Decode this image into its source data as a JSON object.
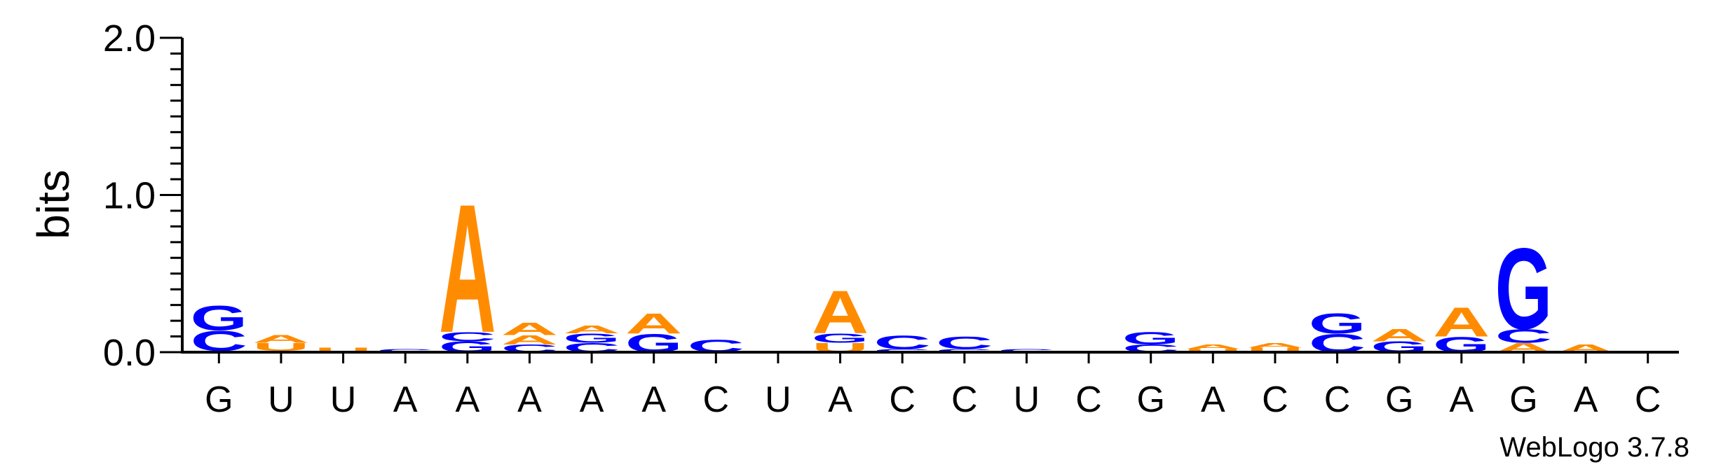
{
  "colors": {
    "A": "#ff8c00",
    "C": "#0000ff",
    "G": "#0000ff",
    "U": "#ff8c00",
    "axis": "#000000"
  },
  "credit": "WebLogo 3.7.8",
  "chart_data": {
    "type": "sequence-logo",
    "ylabel": "bits",
    "ylim": [
      0,
      2.0
    ],
    "yticks": [
      "0.0",
      "1.0",
      "2.0"
    ],
    "consensus": [
      "G",
      "U",
      "U",
      "A",
      "A",
      "A",
      "A",
      "A",
      "C",
      "U",
      "A",
      "C",
      "C",
      "U",
      "C",
      "G",
      "A",
      "C",
      "C",
      "G",
      "A",
      "G",
      "A",
      "C"
    ],
    "stacks": [
      [
        {
          "b": "U",
          "h": 0.01
        },
        {
          "b": "C",
          "h": 0.13
        },
        {
          "b": "G",
          "h": 0.16
        }
      ],
      [
        {
          "b": "G",
          "h": 0.01
        },
        {
          "b": "U",
          "h": 0.05
        },
        {
          "b": "A",
          "h": 0.05
        }
      ],
      [
        {
          "b": "U",
          "h": 0.03
        }
      ],
      [
        {
          "b": "C",
          "h": 0.02
        }
      ],
      [
        {
          "b": "G",
          "h": 0.07
        },
        {
          "b": "C",
          "h": 0.06
        },
        {
          "b": "A",
          "h": 0.84
        }
      ],
      [
        {
          "b": "C",
          "h": 0.05
        },
        {
          "b": "A",
          "h": 0.06
        },
        {
          "b": "A",
          "h": 0.08
        }
      ],
      [
        {
          "b": "C",
          "h": 0.06
        },
        {
          "b": "G",
          "h": 0.06
        },
        {
          "b": "A",
          "h": 0.05
        }
      ],
      [
        {
          "b": "G",
          "h": 0.12
        },
        {
          "b": "A",
          "h": 0.13
        }
      ],
      [
        {
          "b": "C",
          "h": 0.08
        }
      ],
      [],
      [
        {
          "b": "U",
          "h": 0.06
        },
        {
          "b": "G",
          "h": 0.06
        },
        {
          "b": "A",
          "h": 0.28
        }
      ],
      [
        {
          "b": "C",
          "h": 0.02
        },
        {
          "b": "C",
          "h": 0.09
        }
      ],
      [
        {
          "b": "C",
          "h": 0.02
        },
        {
          "b": "C",
          "h": 0.08
        }
      ],
      [
        {
          "b": "C",
          "h": 0.02
        }
      ],
      [],
      [
        {
          "b": "C",
          "h": 0.05
        },
        {
          "b": "G",
          "h": 0.08
        }
      ],
      [
        {
          "b": "U",
          "h": 0.02
        },
        {
          "b": "A",
          "h": 0.03
        }
      ],
      [
        {
          "b": "U",
          "h": 0.03
        },
        {
          "b": "A",
          "h": 0.03
        }
      ],
      [
        {
          "b": "C",
          "h": 0.12
        },
        {
          "b": "G",
          "h": 0.13
        }
      ],
      [
        {
          "b": "G",
          "h": 0.07
        },
        {
          "b": "A",
          "h": 0.08
        }
      ],
      [
        {
          "b": "G",
          "h": 0.1
        },
        {
          "b": "A",
          "h": 0.19
        }
      ],
      [
        {
          "b": "A",
          "h": 0.06
        },
        {
          "b": "C",
          "h": 0.09
        },
        {
          "b": "G",
          "h": 0.53
        }
      ],
      [
        {
          "b": "A",
          "h": 0.05
        }
      ],
      [
        {
          "b": "C",
          "h": 0.01
        }
      ]
    ]
  }
}
